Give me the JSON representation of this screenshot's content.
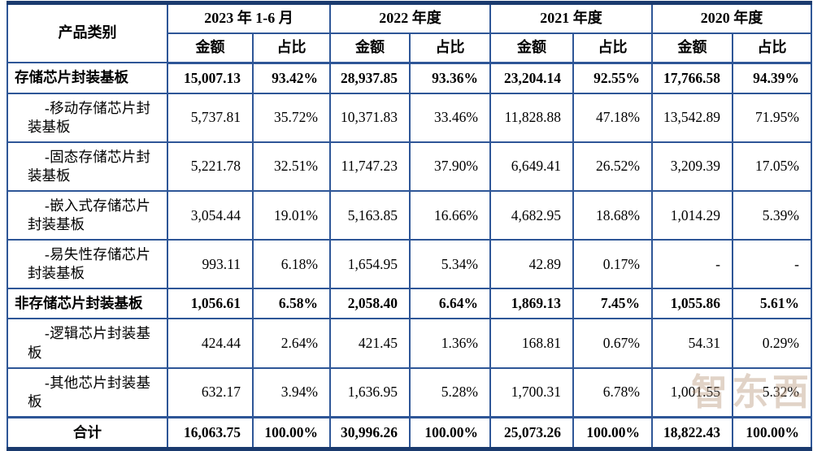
{
  "table": {
    "header": {
      "category_label": "产品类别",
      "periods": [
        "2023 年 1-6 月",
        "2022 年度",
        "2021 年度",
        "2020 年度"
      ],
      "amount_label": "金额",
      "ratio_label": "占比"
    },
    "rows": [
      {
        "label": "存储芯片封装基板",
        "type": "main",
        "bold": true,
        "values": [
          "15,007.13",
          "93.42%",
          "28,937.85",
          "93.36%",
          "23,204.14",
          "92.55%",
          "17,766.58",
          "94.39%"
        ]
      },
      {
        "label": "-移动存储芯片封装基板",
        "type": "sub",
        "bold": false,
        "values": [
          "5,737.81",
          "35.72%",
          "10,371.83",
          "33.46%",
          "11,828.88",
          "47.18%",
          "13,542.89",
          "71.95%"
        ]
      },
      {
        "label": "-固态存储芯片封装基板",
        "type": "sub",
        "bold": false,
        "values": [
          "5,221.78",
          "32.51%",
          "11,747.23",
          "37.90%",
          "6,649.41",
          "26.52%",
          "3,209.39",
          "17.05%"
        ]
      },
      {
        "label": "-嵌入式存储芯片封装基板",
        "type": "sub",
        "bold": false,
        "values": [
          "3,054.44",
          "19.01%",
          "5,163.85",
          "16.66%",
          "4,682.95",
          "18.68%",
          "1,014.29",
          "5.39%"
        ]
      },
      {
        "label": "-易失性存储芯片封装基板",
        "type": "sub",
        "bold": false,
        "values": [
          "993.11",
          "6.18%",
          "1,654.95",
          "5.34%",
          "42.89",
          "0.17%",
          "-",
          "-"
        ]
      },
      {
        "label": "非存储芯片封装基板",
        "type": "main",
        "bold": true,
        "values": [
          "1,056.61",
          "6.58%",
          "2,058.40",
          "6.64%",
          "1,869.13",
          "7.45%",
          "1,055.86",
          "5.61%"
        ]
      },
      {
        "label": "-逻辑芯片封装基板",
        "type": "sub",
        "bold": false,
        "values": [
          "424.44",
          "2.64%",
          "421.45",
          "1.36%",
          "168.81",
          "0.67%",
          "54.31",
          "0.29%"
        ]
      },
      {
        "label": "-其他芯片封装基板",
        "type": "sub",
        "bold": false,
        "values": [
          "632.17",
          "3.94%",
          "1,636.95",
          "5.28%",
          "1,700.31",
          "6.78%",
          "1,001.55",
          "5.32%"
        ]
      },
      {
        "label": "合计",
        "type": "total",
        "bold": true,
        "values": [
          "16,063.75",
          "100.00%",
          "30,996.26",
          "100.00%",
          "25,073.26",
          "100.00%",
          "18,822.43",
          "100.00%"
        ]
      }
    ]
  },
  "watermark": {
    "text": "智东西"
  },
  "colors": {
    "border_inner": "#2e5697",
    "border_outer": "#1a3a6e",
    "watermark": "#bd9e84"
  }
}
